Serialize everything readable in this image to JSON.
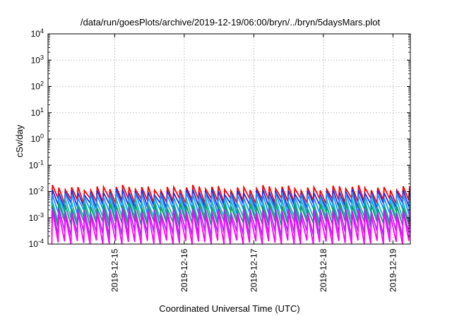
{
  "chart_data": {
    "type": "line",
    "title": "/data/run/goesPlots/archive/2019-12-19/06:00/bryn/../bryn/5daysMars.plot",
    "xlabel": "Coordinated Universal Time (UTC)",
    "ylabel": "cSv/day",
    "y_scale": "log",
    "ylim_exponents": [
      -4,
      4
    ],
    "y_ticks": [
      {
        "base": "10",
        "exp": "-4"
      },
      {
        "base": "10",
        "exp": "-3"
      },
      {
        "base": "10",
        "exp": "-2"
      },
      {
        "base": "10",
        "exp": "-1"
      },
      {
        "base": "10",
        "exp": "0"
      },
      {
        "base": "10",
        "exp": "1"
      },
      {
        "base": "10",
        "exp": "2"
      },
      {
        "base": "10",
        "exp": "3"
      },
      {
        "base": "10",
        "exp": "4"
      }
    ],
    "x_range_days": [
      "2019-12-14 01:00",
      "2019-12-19 06:00"
    ],
    "x_ticks": [
      "2019-12-15",
      "2019-12-16",
      "2019-12-17",
      "2019-12-18",
      "2019-12-19"
    ],
    "grid": true,
    "sawtooth_period_hours": 2.2,
    "series": [
      {
        "color": "#ff0000",
        "peak": 0.014,
        "trough": 0.0045
      },
      {
        "color": "#2a2ad8",
        "peak": 0.01,
        "trough": 0.003
      },
      {
        "color": "#1e90ff",
        "peak": 0.0075,
        "trough": 0.0018
      },
      {
        "color": "#18b8c8",
        "peak": 0.0045,
        "trough": 0.0009
      },
      {
        "color": "#0aa058",
        "peak": 0.003,
        "trough": 0.0006
      },
      {
        "color": "#9b30ff",
        "peak": 0.002,
        "trough": 0.00025
      },
      {
        "color": "#ff00ff",
        "peak": 0.0015,
        "trough": 0.00011
      }
    ]
  }
}
